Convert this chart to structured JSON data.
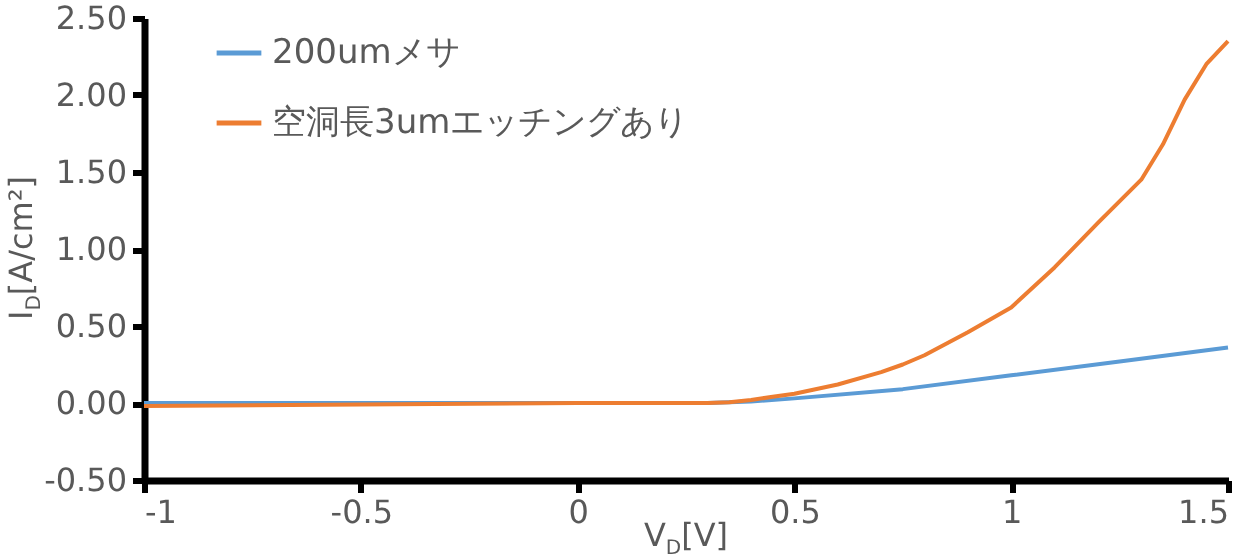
{
  "chart_data": {
    "type": "line",
    "xlabel": "V$_{D}$[V]",
    "ylabel": "I$_{D}$[A/cm²]",
    "xlim": [
      -1,
      1.5
    ],
    "xticks": [
      -1,
      -0.5,
      0,
      0.5,
      1,
      1.5
    ],
    "ylim": [
      -0.5,
      2.5
    ],
    "yticks": [
      {
        "value": -0.5,
        "label": "-0.50"
      },
      {
        "value": 0,
        "label": "0.00"
      },
      {
        "value": 0.5,
        "label": "0.50"
      },
      {
        "value": 1,
        "label": "1.00"
      },
      {
        "value": 1.5,
        "label": "1.50"
      },
      {
        "value": 2,
        "label": "2.00"
      },
      {
        "value": 2.5,
        "label": "2.50"
      }
    ],
    "grid": false,
    "legend": "top left",
    "marker": "none",
    "line_style": "solid",
    "series": [
      {
        "name": "200umメサ",
        "color": "#5b9bd5",
        "x": [
          -1,
          -0.5,
          0,
          0.3,
          0.4,
          0.5,
          0.75,
          1,
          1.25,
          1.5
        ],
        "values": [
          0,
          0,
          0,
          0,
          0.01,
          0.03,
          0.09,
          0.18,
          0.27,
          0.36
        ]
      },
      {
        "name": "空洞長3umエッチングあり",
        "color": "#ed7d31",
        "x": [
          -1,
          -0.5,
          0,
          0.3,
          0.35,
          0.4,
          0.45,
          0.5,
          0.6,
          0.7,
          0.75,
          0.8,
          0.9,
          1,
          1.1,
          1.2,
          1.3,
          1.35,
          1.4,
          1.45,
          1.5
        ],
        "values": [
          -0.02,
          -0.01,
          0,
          0,
          0.005,
          0.02,
          0.04,
          0.06,
          0.12,
          0.2,
          0.25,
          0.31,
          0.46,
          0.62,
          0.88,
          1.17,
          1.45,
          1.68,
          1.97,
          2.2,
          2.35
        ]
      }
    ]
  }
}
